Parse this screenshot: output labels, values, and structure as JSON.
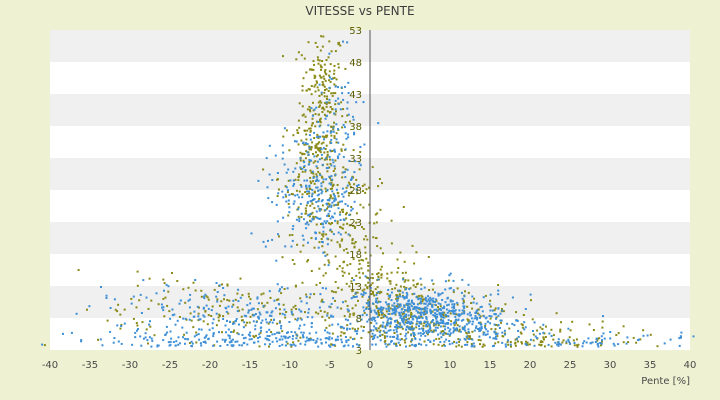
{
  "chart_data": {
    "type": "scatter",
    "title": "VITESSE vs PENTE",
    "xlabel": "Pente [%]",
    "ylabel": "",
    "xlim": [
      -40,
      40
    ],
    "ylim": [
      3,
      53
    ],
    "xticks": [
      -40,
      -35,
      -30,
      -25,
      -20,
      -15,
      -10,
      -5,
      0,
      5,
      10,
      15,
      20,
      25,
      30,
      35,
      40
    ],
    "yticks": [
      3,
      8,
      13,
      18,
      23,
      28,
      33,
      38,
      43,
      48,
      53
    ],
    "grid": "horizontal bands",
    "legend": "none",
    "colors": {
      "background": "#eef2d2",
      "plot": "#ffffff",
      "band": "#f0f0f0",
      "series_a": "#3d8fd6",
      "series_b": "#8a8a18",
      "axis": "#555555"
    },
    "series": [
      {
        "color": "#8a8a18",
        "clusters": [
          {
            "x": -6,
            "y": 42,
            "sx": 1.4,
            "sy": 6,
            "n": 220
          },
          {
            "x": -7,
            "y": 30,
            "sx": 2.2,
            "sy": 5,
            "n": 180
          },
          {
            "x": -3,
            "y": 22,
            "sx": 3.0,
            "sy": 5,
            "n": 160
          },
          {
            "x": 2,
            "y": 12,
            "sx": 3.0,
            "sy": 3,
            "n": 150
          },
          {
            "x": 6,
            "y": 8,
            "sx": 6.0,
            "sy": 2.5,
            "n": 260
          },
          {
            "x": -18,
            "y": 9,
            "sx": 8.0,
            "sy": 3,
            "n": 180
          },
          {
            "x": 20,
            "y": 5,
            "sx": 8.0,
            "sy": 1.5,
            "n": 120
          }
        ]
      },
      {
        "color": "#3d8fd6",
        "clusters": [
          {
            "x": -7,
            "y": 27,
            "sx": 2.6,
            "sy": 5,
            "n": 260
          },
          {
            "x": -4,
            "y": 38,
            "sx": 1.6,
            "sy": 7,
            "n": 80
          },
          {
            "x": 6,
            "y": 9,
            "sx": 4.0,
            "sy": 2,
            "n": 420
          },
          {
            "x": 10,
            "y": 7,
            "sx": 5.0,
            "sy": 1.6,
            "n": 220
          },
          {
            "x": -15,
            "y": 8,
            "sx": 9.0,
            "sy": 2.5,
            "n": 260
          },
          {
            "x": -10,
            "y": 4.5,
            "sx": 12.0,
            "sy": 0.8,
            "n": 220
          },
          {
            "x": 25,
            "y": 4.5,
            "sx": 8.0,
            "sy": 0.8,
            "n": 90
          }
        ]
      }
    ]
  }
}
